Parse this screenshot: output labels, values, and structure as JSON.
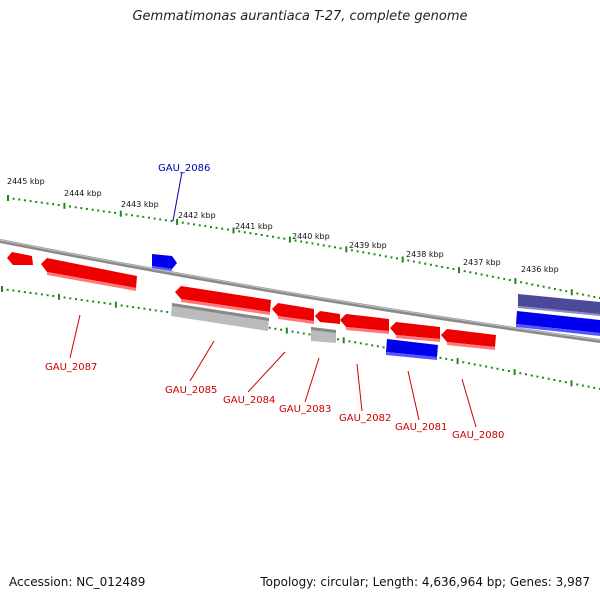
{
  "title": "Gemmatimonas aurantiaca T-27, complete genome",
  "accession": "Accession: NC_012489",
  "summary": "Topology: circular; Length: 4,636,964 bp; Genes: 3,987",
  "scale_labels": [
    "2445 kbp",
    "2444 kbp",
    "2443 kbp",
    "2442 kbp",
    "2441 kbp",
    "2440 kbp",
    "2439 kbp",
    "2438 kbp",
    "2437 kbp",
    "2436 kbp"
  ],
  "colors": {
    "cds": "#ff0000",
    "cds_label": "#cc0000",
    "highlight": "#0000ee",
    "highlight_label": "#0000aa",
    "pseudo": "#bbbbbb",
    "other": "#4a4a99",
    "ticks": "#1a8a1a",
    "backbone": "#888888"
  },
  "genes": [
    {
      "label": "GAU_2086"
    },
    {
      "label": "GAU_2087"
    },
    {
      "label": "GAU_2085"
    },
    {
      "label": "GAU_2084"
    },
    {
      "label": "GAU_2083"
    },
    {
      "label": "GAU_2082"
    },
    {
      "label": "GAU_2081"
    },
    {
      "label": "GAU_2080"
    }
  ]
}
